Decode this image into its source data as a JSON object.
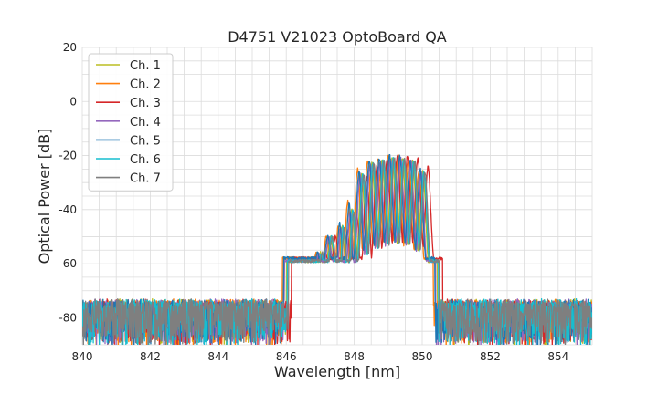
{
  "chart_data": {
    "type": "line",
    "title": "D4751 V21023 OptoBoard QA",
    "xlabel": "Wavelength [nm]",
    "ylabel": "Optical Power [dB]",
    "xlim": [
      840,
      855
    ],
    "ylim": [
      -90,
      20
    ],
    "x_ticks": [
      840,
      842,
      844,
      846,
      848,
      850,
      852,
      854
    ],
    "y_ticks": [
      -80,
      -60,
      -40,
      -20,
      0,
      20
    ],
    "grid": true,
    "legend_position": "top-left",
    "noise_floor": -74,
    "series": [
      {
        "name": "Ch. 1",
        "color": "#bcbd22",
        "offset": 0.0,
        "peaks": [
          [
            847.65,
            -46
          ],
          [
            847.93,
            -40
          ],
          [
            848.22,
            -27
          ],
          [
            848.52,
            -23
          ],
          [
            848.82,
            -22
          ],
          [
            849.12,
            -21
          ],
          [
            849.42,
            -21
          ],
          [
            849.72,
            -22
          ],
          [
            850.02,
            -26
          ]
        ]
      },
      {
        "name": "Ch. 2",
        "color": "#ff7f0e",
        "offset": -0.12,
        "peaks": [
          [
            847.65,
            -46
          ],
          [
            847.93,
            -37
          ],
          [
            848.22,
            -25
          ],
          [
            848.52,
            -22
          ],
          [
            848.82,
            -21
          ],
          [
            849.12,
            -20
          ],
          [
            849.42,
            -20
          ],
          [
            849.72,
            -22
          ],
          [
            850.02,
            -26
          ]
        ]
      },
      {
        "name": "Ch. 3",
        "color": "#d62728",
        "offset": 0.15,
        "peaks": [
          [
            847.65,
            -48
          ],
          [
            847.93,
            -42
          ],
          [
            848.22,
            -28
          ],
          [
            848.52,
            -24
          ],
          [
            848.82,
            -21
          ],
          [
            849.12,
            -20
          ],
          [
            849.42,
            -20
          ],
          [
            849.72,
            -21
          ],
          [
            850.02,
            -24
          ]
        ]
      },
      {
        "name": "Ch. 4",
        "color": "#9467bd",
        "offset": -0.05,
        "peaks": [
          [
            847.65,
            -47
          ],
          [
            847.93,
            -41
          ],
          [
            848.22,
            -27
          ],
          [
            848.52,
            -23
          ],
          [
            848.82,
            -22
          ],
          [
            849.12,
            -21
          ],
          [
            849.42,
            -21
          ],
          [
            849.72,
            -22
          ],
          [
            850.02,
            -26
          ]
        ]
      },
      {
        "name": "Ch. 5",
        "color": "#1f77b4",
        "offset": -0.08,
        "peaks": [
          [
            847.65,
            -45
          ],
          [
            847.93,
            -38
          ],
          [
            848.22,
            -26
          ],
          [
            848.52,
            -22
          ],
          [
            848.82,
            -21
          ],
          [
            849.12,
            -20
          ],
          [
            849.42,
            -20
          ],
          [
            849.72,
            -22
          ],
          [
            850.02,
            -25
          ]
        ]
      },
      {
        "name": "Ch. 6",
        "color": "#17becf",
        "offset": 0.03,
        "peaks": [
          [
            847.65,
            -46
          ],
          [
            847.93,
            -40
          ],
          [
            848.22,
            -27
          ],
          [
            848.52,
            -23
          ],
          [
            848.82,
            -22
          ],
          [
            849.12,
            -21
          ],
          [
            849.42,
            -21
          ],
          [
            849.72,
            -22
          ],
          [
            850.02,
            -26
          ]
        ]
      },
      {
        "name": "Ch. 7",
        "color": "#7f7f7f",
        "offset": 0.06,
        "peaks": [
          [
            847.65,
            -47
          ],
          [
            847.93,
            -41
          ],
          [
            848.22,
            -27
          ],
          [
            848.52,
            -23
          ],
          [
            848.82,
            -22
          ],
          [
            849.12,
            -21
          ],
          [
            849.42,
            -21
          ],
          [
            849.72,
            -22
          ],
          [
            850.02,
            -26
          ]
        ]
      }
    ]
  }
}
